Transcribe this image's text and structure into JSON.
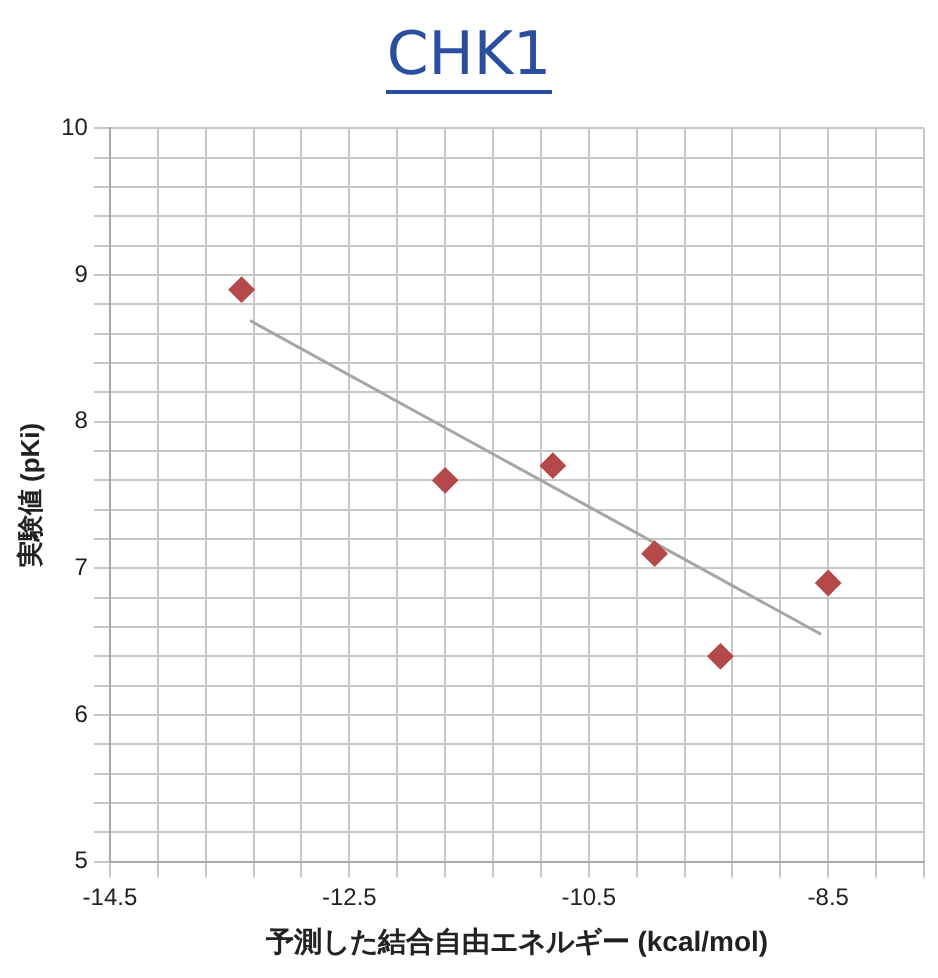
{
  "chart_data": {
    "type": "scatter",
    "title": "CHK1",
    "xlabel": "予測した結合自由エネルギー (kcal/mol)",
    "ylabel": "実験値 (pKi)",
    "x": [
      -13.4,
      -11.7,
      -10.8,
      -9.95,
      -9.4,
      -8.5
    ],
    "series": [
      {
        "type": "scatter",
        "color": "#b5484a",
        "marker": "diamond",
        "values": [
          8.9,
          7.6,
          7.7,
          7.1,
          6.4,
          6.9
        ]
      },
      {
        "type": "line",
        "color": "#a6a6a6",
        "marker": "none",
        "x": [
          -13.33,
          -8.56
        ],
        "values": [
          8.69,
          6.55
        ]
      }
    ],
    "xlim": [
      -14.5,
      -7.7
    ],
    "xticks": [
      -14.5,
      {
        "value": -14.1,
        "label": null
      },
      {
        "value": -13.7,
        "label": null
      },
      {
        "value": -13.3,
        "label": null
      },
      {
        "value": -12.9,
        "label": null
      },
      -12.5,
      {
        "value": -12.1,
        "label": null
      },
      {
        "value": -11.7,
        "label": null
      },
      {
        "value": -11.3,
        "label": null
      },
      {
        "value": -10.9,
        "label": null
      },
      -10.5,
      {
        "value": -10.1,
        "label": null
      },
      {
        "value": -9.7,
        "label": null
      },
      {
        "value": -9.3,
        "label": null
      },
      {
        "value": -8.9,
        "label": null
      },
      -8.5,
      {
        "value": -8.1,
        "label": null
      },
      {
        "value": -7.7,
        "label": null
      }
    ],
    "ylim": [
      5,
      10
    ],
    "yticks": [
      5,
      {
        "value": 5.2,
        "label": null
      },
      {
        "value": 5.4,
        "label": null
      },
      {
        "value": 5.6,
        "label": null
      },
      {
        "value": 5.8,
        "label": null
      },
      6,
      {
        "value": 6.2,
        "label": null
      },
      {
        "value": 6.4,
        "label": null
      },
      {
        "value": 6.6,
        "label": null
      },
      {
        "value": 6.8,
        "label": null
      },
      7,
      {
        "value": 7.2,
        "label": null
      },
      {
        "value": 7.4,
        "label": null
      },
      {
        "value": 7.6,
        "label": null
      },
      {
        "value": 7.8,
        "label": null
      },
      8,
      {
        "value": 8.2,
        "label": null
      },
      {
        "value": 8.4,
        "label": null
      },
      {
        "value": 8.6,
        "label": null
      },
      {
        "value": 8.8,
        "label": null
      },
      9,
      {
        "value": 9.2,
        "label": null
      },
      {
        "value": 9.4,
        "label": null
      },
      {
        "value": 9.6,
        "label": null
      },
      {
        "value": 9.8,
        "label": null
      },
      10
    ],
    "grid": true,
    "legend": false
  }
}
